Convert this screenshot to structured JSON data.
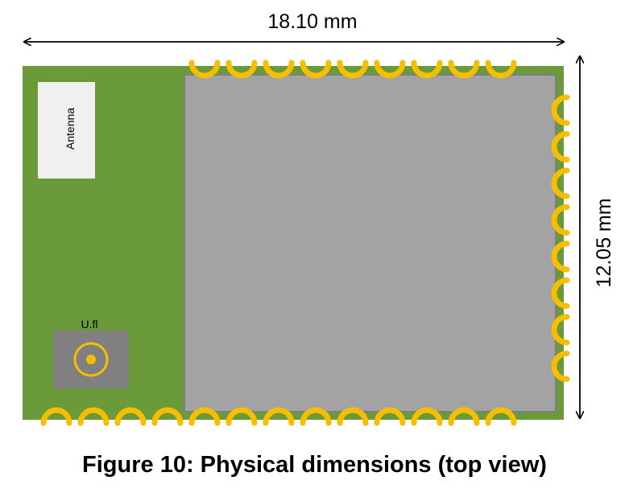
{
  "dimensions": {
    "width_label": "18.10 mm",
    "height_label": "12.05 mm"
  },
  "labels": {
    "antenna": "Antenna",
    "connector": "U.fl"
  },
  "caption": "Figure 10: Physical dimensions (top view)",
  "pads": {
    "top_count": 9,
    "bottom_count": 13,
    "right_count": 8
  },
  "colors": {
    "pcb": "#6b9a3a",
    "shield": "#a3a3a3",
    "shield_border": "#7e7e7e",
    "pad": "#f5be00",
    "antenna_box": "#f0f0f0",
    "connector_base": "#808080",
    "arrow": "#000000"
  }
}
